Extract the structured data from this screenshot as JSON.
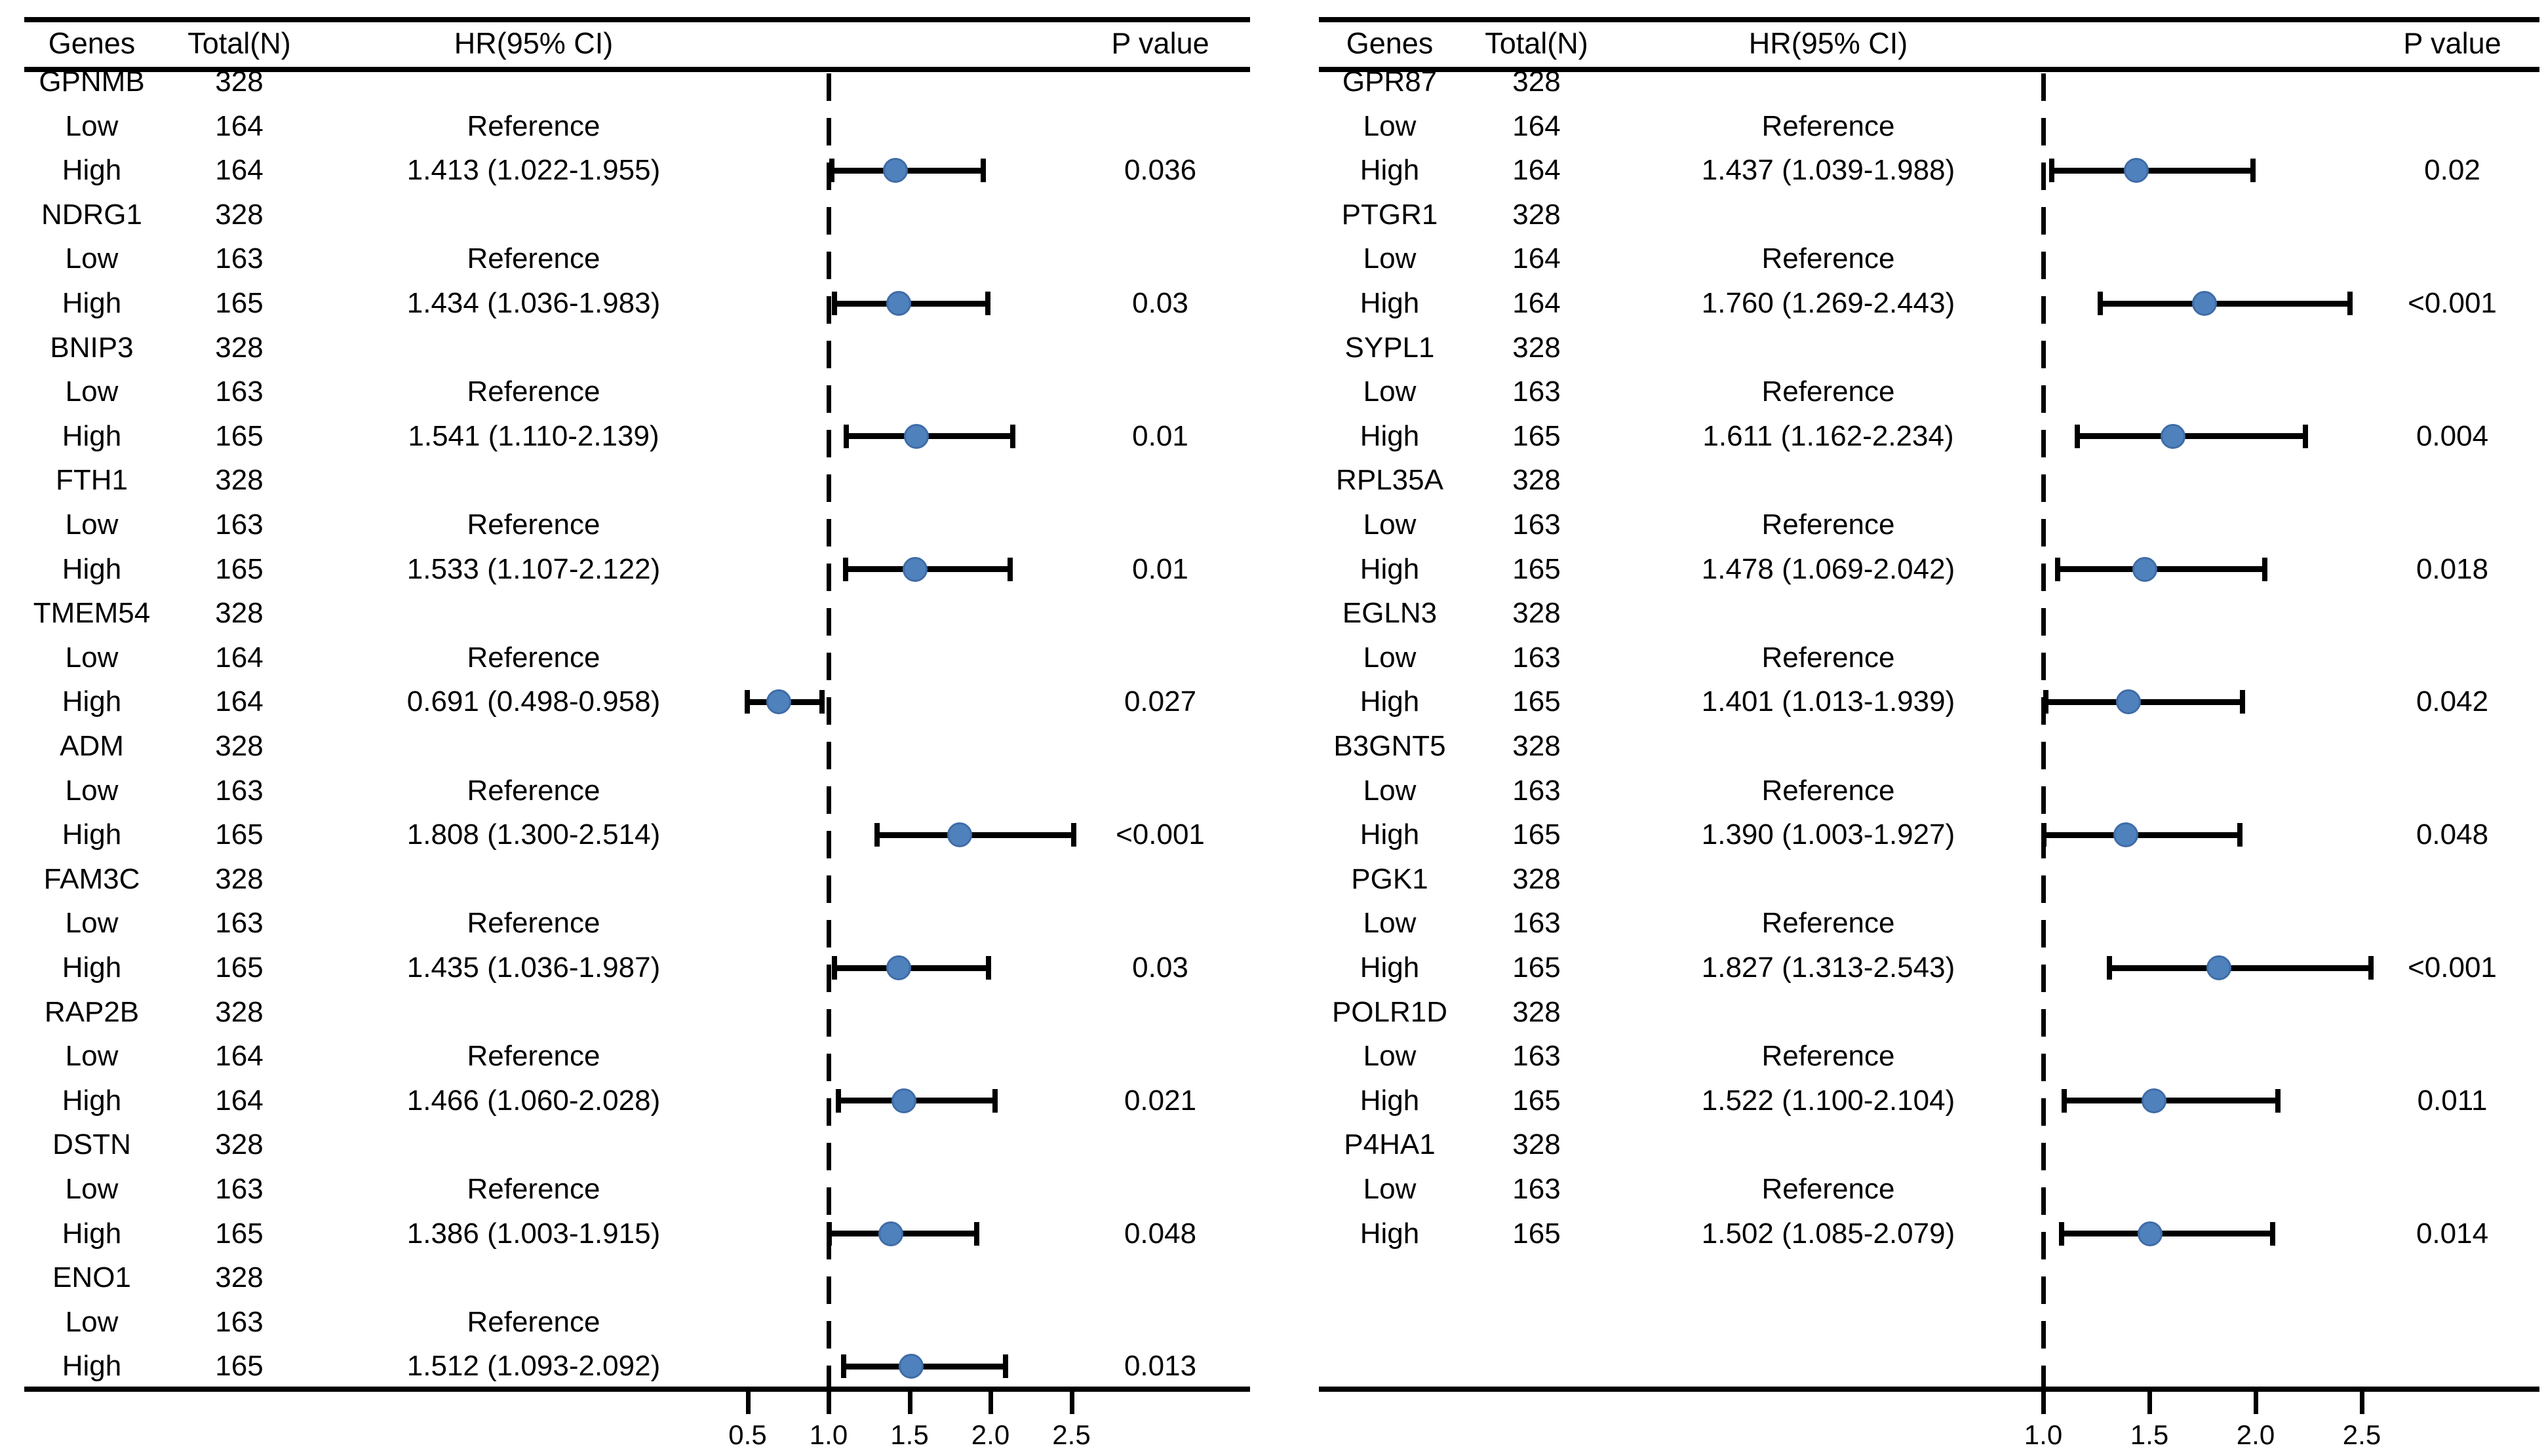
{
  "figure": {
    "background": "#ffffff",
    "marker_color": "#4f81bd",
    "marker_border_color": "#3f6ca6",
    "line_color": "#000000"
  },
  "chart_data": [
    {
      "type": "forest",
      "panel": "left",
      "columns": {
        "genes": "Genes",
        "total": "Total(N)",
        "hr": "HR(95% CI)",
        "p": "P value"
      },
      "row_labels": {
        "low": "Low",
        "high": "High",
        "reference": "Reference"
      },
      "axis": {
        "tick_labels": [
          "0.5",
          "1.0",
          "1.5",
          "2.0",
          "2.5"
        ],
        "tick_values": [
          0.5,
          1.0,
          1.5,
          2.0,
          2.5
        ],
        "ref_line": 1.0,
        "range": [
          0.35,
          3.0
        ]
      },
      "genes": [
        {
          "name": "GPNMB",
          "total": "328",
          "low_n": "164",
          "high_n": "164",
          "hr_text": "1.413 (1.022-1.955)",
          "hr": 1.413,
          "ci_low": 1.022,
          "ci_high": 1.955,
          "p": "0.036"
        },
        {
          "name": "NDRG1",
          "total": "328",
          "low_n": "163",
          "high_n": "165",
          "hr_text": "1.434 (1.036-1.983)",
          "hr": 1.434,
          "ci_low": 1.036,
          "ci_high": 1.983,
          "p": "0.03"
        },
        {
          "name": "BNIP3",
          "total": "328",
          "low_n": "163",
          "high_n": "165",
          "hr_text": "1.541 (1.110-2.139)",
          "hr": 1.541,
          "ci_low": 1.11,
          "ci_high": 2.139,
          "p": "0.01"
        },
        {
          "name": "FTH1",
          "total": "328",
          "low_n": "163",
          "high_n": "165",
          "hr_text": "1.533 (1.107-2.122)",
          "hr": 1.533,
          "ci_low": 1.107,
          "ci_high": 2.122,
          "p": "0.01"
        },
        {
          "name": "TMEM54",
          "total": "328",
          "low_n": "164",
          "high_n": "164",
          "hr_text": "0.691 (0.498-0.958)",
          "hr": 0.691,
          "ci_low": 0.498,
          "ci_high": 0.958,
          "p": "0.027"
        },
        {
          "name": "ADM",
          "total": "328",
          "low_n": "163",
          "high_n": "165",
          "hr_text": "1.808 (1.300-2.514)",
          "hr": 1.808,
          "ci_low": 1.3,
          "ci_high": 2.514,
          "p": "<0.001"
        },
        {
          "name": "FAM3C",
          "total": "328",
          "low_n": "163",
          "high_n": "165",
          "hr_text": "1.435 (1.036-1.987)",
          "hr": 1.435,
          "ci_low": 1.036,
          "ci_high": 1.987,
          "p": "0.03"
        },
        {
          "name": "RAP2B",
          "total": "328",
          "low_n": "164",
          "high_n": "164",
          "hr_text": "1.466 (1.060-2.028)",
          "hr": 1.466,
          "ci_low": 1.06,
          "ci_high": 2.028,
          "p": "0.021"
        },
        {
          "name": "DSTN",
          "total": "328",
          "low_n": "163",
          "high_n": "165",
          "hr_text": "1.386 (1.003-1.915)",
          "hr": 1.386,
          "ci_low": 1.003,
          "ci_high": 1.915,
          "p": "0.048"
        },
        {
          "name": "ENO1",
          "total": "328",
          "low_n": "163",
          "high_n": "165",
          "hr_text": "1.512 (1.093-2.092)",
          "hr": 1.512,
          "ci_low": 1.093,
          "ci_high": 2.092,
          "p": "0.013"
        }
      ]
    },
    {
      "type": "forest",
      "panel": "right",
      "columns": {
        "genes": "Genes",
        "total": "Total(N)",
        "hr": "HR(95% CI)",
        "p": "P value"
      },
      "row_labels": {
        "low": "Low",
        "high": "High",
        "reference": "Reference"
      },
      "axis": {
        "tick_labels": [
          "1.0",
          "1.5",
          "2.0",
          "2.5"
        ],
        "tick_values": [
          1.0,
          1.5,
          2.0,
          2.5
        ],
        "ref_line": 1.0,
        "range": [
          0.6,
          3.0
        ]
      },
      "genes": [
        {
          "name": "GPR87",
          "total": "328",
          "low_n": "164",
          "high_n": "164",
          "hr_text": "1.437 (1.039-1.988)",
          "hr": 1.437,
          "ci_low": 1.039,
          "ci_high": 1.988,
          "p": "0.02"
        },
        {
          "name": "PTGR1",
          "total": "328",
          "low_n": "164",
          "high_n": "164",
          "hr_text": "1.760 (1.269-2.443)",
          "hr": 1.76,
          "ci_low": 1.269,
          "ci_high": 2.443,
          "p": "<0.001"
        },
        {
          "name": "SYPL1",
          "total": "328",
          "low_n": "163",
          "high_n": "165",
          "hr_text": "1.611 (1.162-2.234)",
          "hr": 1.611,
          "ci_low": 1.162,
          "ci_high": 2.234,
          "p": "0.004"
        },
        {
          "name": "RPL35A",
          "total": "328",
          "low_n": "163",
          "high_n": "165",
          "hr_text": "1.478 (1.069-2.042)",
          "hr": 1.478,
          "ci_low": 1.069,
          "ci_high": 2.042,
          "p": "0.018"
        },
        {
          "name": "EGLN3",
          "total": "328",
          "low_n": "163",
          "high_n": "165",
          "hr_text": "1.401 (1.013-1.939)",
          "hr": 1.401,
          "ci_low": 1.013,
          "ci_high": 1.939,
          "p": "0.042"
        },
        {
          "name": "B3GNT5",
          "total": "328",
          "low_n": "163",
          "high_n": "165",
          "hr_text": "1.390 (1.003-1.927)",
          "hr": 1.39,
          "ci_low": 1.003,
          "ci_high": 1.927,
          "p": "0.048"
        },
        {
          "name": "PGK1",
          "total": "328",
          "low_n": "163",
          "high_n": "165",
          "hr_text": "1.827 (1.313-2.543)",
          "hr": 1.827,
          "ci_low": 1.313,
          "ci_high": 2.543,
          "p": "<0.001"
        },
        {
          "name": "POLR1D",
          "total": "328",
          "low_n": "163",
          "high_n": "165",
          "hr_text": "1.522 (1.100-2.104)",
          "hr": 1.522,
          "ci_low": 1.1,
          "ci_high": 2.104,
          "p": "0.011"
        },
        {
          "name": "P4HA1",
          "total": "328",
          "low_n": "163",
          "high_n": "165",
          "hr_text": "1.502 (1.085-2.079)",
          "hr": 1.502,
          "ci_low": 1.085,
          "ci_high": 2.079,
          "p": "0.014"
        }
      ]
    }
  ]
}
